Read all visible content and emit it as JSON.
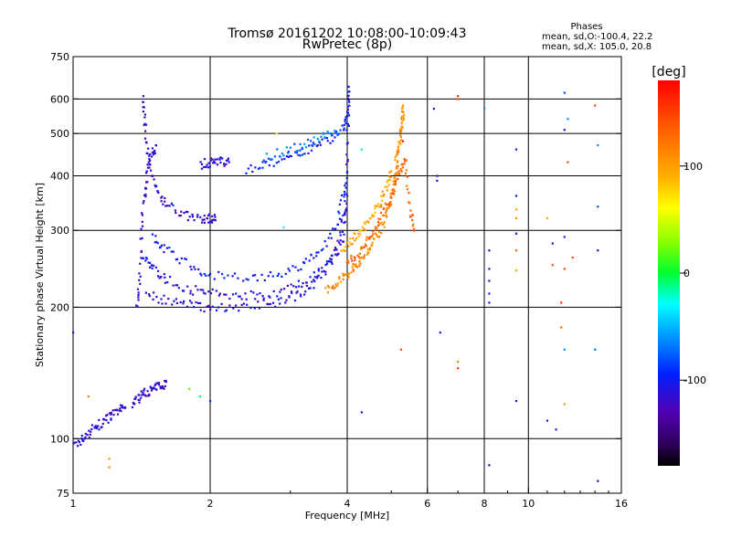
{
  "chart_data": {
    "type": "scatter",
    "title": "Tromsø 20161202 10:08:00-10:09:43",
    "subtitle": "RwPretec (8p)",
    "xlabel": "Frequency [MHz]",
    "ylabel": "Stationary phase Virtual Height [km]",
    "x_scale": "log",
    "y_scale": "log",
    "xlim": [
      1,
      16
    ],
    "ylim": [
      75,
      750
    ],
    "x_ticks": [
      1,
      2,
      4,
      6,
      8,
      10,
      16
    ],
    "x_tick_labels": [
      "1",
      "2",
      "4",
      "6",
      "8",
      "10",
      "16"
    ],
    "y_ticks": [
      75,
      100,
      200,
      300,
      400,
      500,
      600,
      750
    ],
    "y_tick_labels": [
      "75",
      "100",
      "200",
      "300",
      "400",
      "500",
      "600",
      "750"
    ],
    "grid_x": [
      2,
      4,
      6,
      8,
      10
    ],
    "grid_y": [
      100,
      200,
      300,
      400,
      500,
      600
    ],
    "phase_box": {
      "title": "Phases",
      "line1": "mean, sd,O:-100.4, 22.2",
      "line2": "mean, sd,X: 105.0, 20.8"
    },
    "colorbar": {
      "label": "[deg]",
      "range": [
        -180,
        180
      ],
      "ticks": [
        100,
        0,
        -100
      ],
      "tick_labels": [
        "100",
        "0",
        "-100"
      ]
    },
    "series": [
      {
        "polarization": "O",
        "traces": [
          {
            "points": [
              [
                1.0,
                96
              ],
              [
                1.05,
                100
              ],
              [
                1.1,
                105
              ],
              [
                1.15,
                108
              ],
              [
                1.2,
                112
              ],
              [
                1.25,
                115
              ],
              [
                1.3,
                118
              ]
            ],
            "phase": -115
          },
          {
            "points": [
              [
                1.35,
                120
              ],
              [
                1.4,
                125
              ],
              [
                1.45,
                128
              ],
              [
                1.5,
                130
              ],
              [
                1.55,
                132
              ],
              [
                1.6,
                135
              ]
            ],
            "phase": -120
          },
          {
            "points": [
              [
                1.38,
                200
              ],
              [
                1.4,
                240
              ],
              [
                1.42,
                330
              ],
              [
                1.45,
                390
              ],
              [
                1.48,
                440
              ],
              [
                1.52,
                470
              ]
            ],
            "phase": -118
          },
          {
            "points": [
              [
                1.42,
                600
              ],
              [
                1.44,
                520
              ],
              [
                1.47,
                420
              ],
              [
                1.52,
                370
              ],
              [
                1.6,
                345
              ],
              [
                1.75,
                325
              ],
              [
                1.9,
                318
              ],
              [
                2.0,
                320
              ],
              [
                2.05,
                322
              ]
            ],
            "phase": -115
          },
          {
            "points": [
              [
                1.42,
                260
              ],
              [
                1.5,
                245
              ],
              [
                1.6,
                232
              ],
              [
                1.8,
                220
              ],
              [
                2.0,
                215
              ],
              [
                2.3,
                213
              ],
              [
                2.6,
                214
              ],
              [
                3.0,
                220
              ],
              [
                3.3,
                232
              ],
              [
                3.6,
                250
              ],
              [
                3.8,
                275
              ],
              [
                3.95,
                330
              ],
              [
                4.0,
                420
              ],
              [
                4.02,
                560
              ],
              [
                4.03,
                640
              ]
            ],
            "phase": -110
          },
          {
            "points": [
              [
                1.45,
                215
              ],
              [
                1.6,
                207
              ],
              [
                1.8,
                202
              ],
              [
                2.0,
                200
              ],
              [
                2.3,
                200
              ],
              [
                2.7,
                204
              ],
              [
                3.0,
                210
              ],
              [
                3.3,
                222
              ],
              [
                3.6,
                242
              ],
              [
                3.9,
                280
              ],
              [
                4.0,
                360
              ]
            ],
            "phase": -112
          },
          {
            "points": [
              [
                1.5,
                290
              ],
              [
                1.6,
                270
              ],
              [
                1.8,
                250
              ],
              [
                2.0,
                238
              ],
              [
                2.4,
                232
              ],
              [
                2.8,
                236
              ],
              [
                3.2,
                250
              ],
              [
                3.5,
                270
              ],
              [
                3.8,
                310
              ],
              [
                3.95,
                380
              ]
            ],
            "phase": -100
          },
          {
            "points": [
              [
                1.9,
                425
              ],
              [
                2.0,
                430
              ],
              [
                2.1,
                432
              ],
              [
                2.2,
                430
              ]
            ],
            "phase": -112
          },
          {
            "points": [
              [
                2.4,
                415
              ],
              [
                2.7,
                425
              ],
              [
                3.0,
                440
              ],
              [
                3.3,
                460
              ],
              [
                3.6,
                480
              ],
              [
                3.9,
                510
              ],
              [
                4.0,
                560
              ]
            ],
            "phase": -95
          },
          {
            "points": [
              [
                2.6,
                440
              ],
              [
                2.9,
                455
              ],
              [
                3.2,
                470
              ],
              [
                3.5,
                490
              ],
              [
                3.8,
                500
              ]
            ],
            "phase": -70
          }
        ]
      },
      {
        "polarization": "X",
        "traces": [
          {
            "points": [
              [
                3.6,
                220
              ],
              [
                3.8,
                228
              ],
              [
                4.0,
                238
              ],
              [
                4.2,
                250
              ],
              [
                4.4,
                265
              ],
              [
                4.6,
                285
              ],
              [
                4.8,
                310
              ],
              [
                4.95,
                340
              ],
              [
                5.05,
                370
              ],
              [
                5.1,
                400
              ],
              [
                5.15,
                430
              ]
            ],
            "phase": 110
          },
          {
            "points": [
              [
                4.0,
                250
              ],
              [
                4.2,
                262
              ],
              [
                4.4,
                280
              ],
              [
                4.6,
                300
              ],
              [
                4.8,
                330
              ],
              [
                5.0,
                360
              ],
              [
                5.2,
                400
              ],
              [
                5.35,
                440
              ],
              [
                5.5,
                330
              ],
              [
                5.6,
                300
              ]
            ],
            "phase": 130
          },
          {
            "points": [
              [
                3.9,
                270
              ],
              [
                4.1,
                285
              ],
              [
                4.3,
                300
              ],
              [
                4.5,
                320
              ],
              [
                4.7,
                345
              ],
              [
                4.9,
                380
              ],
              [
                5.0,
                410
              ]
            ],
            "phase": 95
          },
          {
            "points": [
              [
                5.1,
                440
              ],
              [
                5.2,
                470
              ],
              [
                5.25,
                500
              ],
              [
                5.3,
                540
              ],
              [
                5.3,
                580
              ]
            ],
            "phase": 105
          }
        ]
      }
    ],
    "scattered_points": [
      [
        1.0,
        175,
        -110
      ],
      [
        1.2,
        90,
        105
      ],
      [
        1.2,
        86,
        110
      ],
      [
        1.08,
        125,
        115
      ],
      [
        1.8,
        130,
        15
      ],
      [
        1.9,
        125,
        -10
      ],
      [
        2.0,
        122,
        -90
      ],
      [
        2.8,
        500,
        60
      ],
      [
        2.9,
        305,
        -30
      ],
      [
        4.3,
        460,
        -20
      ],
      [
        4.3,
        115,
        -100
      ],
      [
        5.3,
        480,
        175
      ],
      [
        5.25,
        160,
        145
      ],
      [
        6.2,
        570,
        -110
      ],
      [
        6.3,
        400,
        -120
      ],
      [
        6.3,
        390,
        -115
      ],
      [
        6.4,
        175,
        -105
      ],
      [
        7.0,
        610,
        150
      ],
      [
        7.0,
        600,
        140
      ],
      [
        7.0,
        150,
        120
      ],
      [
        7.0,
        145,
        150
      ],
      [
        8.0,
        570,
        -60
      ],
      [
        8.2,
        270,
        -120
      ],
      [
        8.2,
        245,
        -110
      ],
      [
        8.2,
        230,
        -120
      ],
      [
        8.2,
        215,
        -130
      ],
      [
        8.2,
        205,
        -115
      ],
      [
        8.2,
        87,
        -140
      ],
      [
        9.4,
        460,
        -100
      ],
      [
        9.4,
        360,
        -100
      ],
      [
        9.4,
        335,
        100
      ],
      [
        9.4,
        320,
        105
      ],
      [
        9.4,
        295,
        -100
      ],
      [
        9.4,
        270,
        130
      ],
      [
        9.4,
        243,
        100
      ],
      [
        9.4,
        122,
        -110
      ],
      [
        11.0,
        320,
        100
      ],
      [
        11.3,
        280,
        -100
      ],
      [
        11.3,
        250,
        140
      ],
      [
        11.0,
        110,
        -110
      ],
      [
        11.5,
        105,
        -110
      ],
      [
        12.0,
        620,
        -80
      ],
      [
        12.2,
        540,
        -60
      ],
      [
        12.0,
        510,
        -110
      ],
      [
        12.2,
        430,
        140
      ],
      [
        12.0,
        290,
        -90
      ],
      [
        12.5,
        260,
        150
      ],
      [
        12.0,
        245,
        140
      ],
      [
        11.8,
        205,
        160
      ],
      [
        11.8,
        180,
        130
      ],
      [
        12.0,
        160,
        -60
      ],
      [
        12.0,
        120,
        100
      ],
      [
        14.0,
        580,
        150
      ],
      [
        14.2,
        470,
        -60
      ],
      [
        14.2,
        340,
        -80
      ],
      [
        14.2,
        270,
        -100
      ],
      [
        14.0,
        160,
        -70
      ],
      [
        14.2,
        80,
        -110
      ]
    ]
  }
}
